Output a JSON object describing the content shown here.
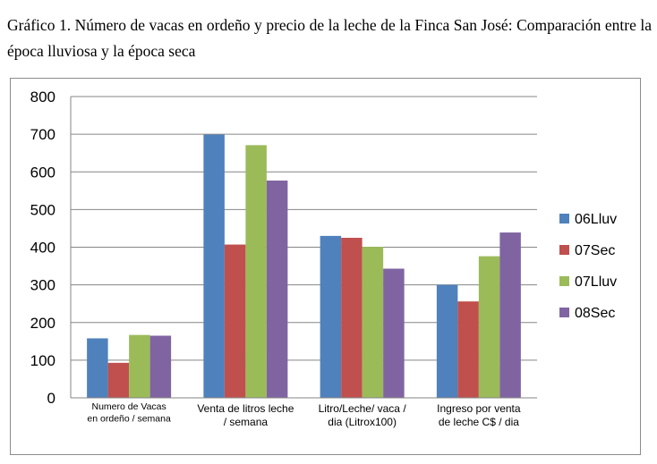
{
  "caption": "Gráfico 1. Número de vacas en ordeño y precio de la leche de la Finca San José: Comparación entre la época lluviosa y la época seca",
  "chart_data": {
    "type": "bar",
    "ylim": [
      0,
      800
    ],
    "yticks": [
      0,
      100,
      200,
      300,
      400,
      500,
      600,
      700,
      800
    ],
    "grid": true,
    "legend_position": "right",
    "categories": [
      [
        "Numero de  Vacas",
        "en ordeño / semana"
      ],
      [
        "Venta de litros leche",
        "/ semana"
      ],
      [
        "Litro/Leche/ vaca /",
        "dia (Litrox100)"
      ],
      [
        "Ingreso por venta",
        "de leche C$ / dia"
      ]
    ],
    "series": [
      {
        "name": "06Lluv",
        "color": "#4F81BD",
        "values": [
          158,
          699,
          430,
          300
        ]
      },
      {
        "name": "07Sec",
        "color": "#C0504D",
        "values": [
          93,
          407,
          425,
          256
        ]
      },
      {
        "name": "07Lluv",
        "color": "#9BBB59",
        "values": [
          167,
          671,
          401,
          376
        ]
      },
      {
        "name": "08Sec",
        "color": "#8064A2",
        "values": [
          165,
          577,
          343,
          439
        ]
      }
    ]
  }
}
